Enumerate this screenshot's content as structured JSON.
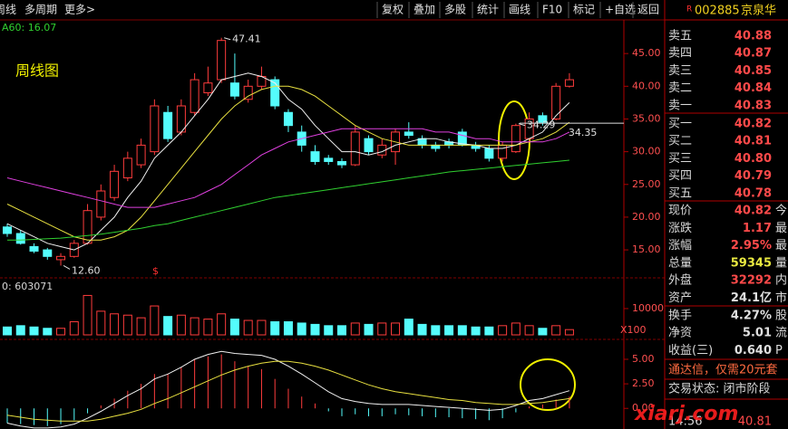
{
  "toolbar": {
    "left": [
      "周线",
      "多周期",
      "更多>"
    ],
    "buttons": [
      "复权",
      "叠加",
      "多股",
      "统计",
      "画线",
      "F10",
      "标记",
      "+自选",
      "返回"
    ]
  },
  "quote": {
    "flag": "R",
    "code": "002885",
    "name": "京泉华",
    "book": [
      [
        "卖五",
        "40.88"
      ],
      [
        "卖四",
        "40.87"
      ],
      [
        "卖三",
        "40.85"
      ],
      [
        "卖二",
        "40.84"
      ],
      [
        "卖一",
        "40.83"
      ],
      [
        "买一",
        "40.82"
      ],
      [
        "买二",
        "40.81"
      ],
      [
        "买三",
        "40.80"
      ],
      [
        "买四",
        "40.79"
      ],
      [
        "买五",
        "40.78"
      ]
    ],
    "stats": [
      {
        "label": "现价",
        "value": "40.82",
        "tail": "今",
        "color": "#ff4a4a"
      },
      {
        "label": "涨跌",
        "value": "1.17",
        "tail": "最",
        "color": "#ff4a4a"
      },
      {
        "label": "涨幅",
        "value": "2.95%",
        "tail": "最",
        "color": "#ff4a4a"
      },
      {
        "label": "总量",
        "value": "59345",
        "tail": "量",
        "color": "#e8e840"
      },
      {
        "label": "外盘",
        "value": "32292",
        "tail": "内",
        "color": "#ff4a4a"
      },
      {
        "label": "资产",
        "value": "24.1亿",
        "tail": "市",
        "color": "#e0e0e0"
      },
      {
        "label": "换手",
        "value": "4.27%",
        "tail": "股",
        "color": "#e0e0e0"
      },
      {
        "label": "净资",
        "value": "5.01",
        "tail": "流",
        "color": "#e0e0e0"
      },
      {
        "label": "收益(三)",
        "value": "0.640",
        "tail": "P",
        "color": "#e0e0e0"
      }
    ],
    "promo": "通达信，仅需20元套",
    "status": "交易状态: 闭市阶段",
    "tick": {
      "time": "14:56",
      "price": "40.81"
    }
  },
  "watermark": "xiarj.com",
  "chart_data": [
    {
      "type": "candlestick",
      "title": "周线图",
      "ma_label": "A60: 16.07",
      "mark": "$",
      "up_color": "#ff3c3c",
      "down_color": "#54fcfc",
      "open": [
        18.5,
        17.5,
        15.5,
        15,
        13.5,
        14,
        16,
        20,
        23,
        26,
        28,
        30,
        36,
        33,
        36,
        39,
        41,
        40.5,
        38,
        40,
        41,
        36,
        33,
        30,
        29,
        28.5,
        28,
        32,
        29.5,
        30,
        33,
        32,
        31,
        31.5,
        33,
        31,
        30.5,
        29,
        30,
        32,
        35.5,
        35,
        40
      ],
      "close": [
        17.5,
        16,
        14.8,
        14,
        14,
        16,
        21,
        24,
        27,
        29,
        31,
        37,
        32,
        37,
        41,
        40.5,
        47,
        38.5,
        40,
        41.5,
        37,
        34,
        31,
        28.5,
        28.5,
        28,
        33,
        30,
        31,
        33,
        32.5,
        31,
        30.5,
        31,
        31,
        30.5,
        29,
        31,
        34,
        35,
        34.5,
        40,
        41
      ],
      "high": [
        19,
        18,
        16,
        15.3,
        14.5,
        16.5,
        22,
        25,
        28,
        30,
        32,
        38,
        37,
        38,
        42,
        43,
        47.41,
        45,
        41,
        43,
        41.5,
        36.5,
        34,
        31,
        29.5,
        29,
        34,
        32.5,
        32,
        33.5,
        34.5,
        32.5,
        31.5,
        32,
        33.5,
        31.5,
        31,
        31.5,
        34.29,
        36,
        36,
        40.5,
        42
      ],
      "low": [
        17,
        15.8,
        14.5,
        13.5,
        12.6,
        13.8,
        15.8,
        19.5,
        22.5,
        25.5,
        27.5,
        29.5,
        31.5,
        32.5,
        35.5,
        38.5,
        40.5,
        38,
        37.5,
        39.5,
        36.5,
        33,
        30,
        28,
        28,
        27.5,
        27.8,
        29.5,
        29,
        28,
        32,
        30.5,
        30,
        30.5,
        30.8,
        30,
        28.5,
        28.5,
        29.8,
        31.5,
        34,
        34.8,
        39.8
      ],
      "lines": [
        {
          "color": "#f0f0f0",
          "values": [
            19,
            18,
            17,
            16,
            15.5,
            15,
            16,
            18,
            20,
            23,
            25.5,
            29,
            31,
            33,
            35.5,
            38,
            41,
            41.5,
            42,
            41.5,
            40.5,
            38,
            36.5,
            34,
            32,
            30,
            30,
            29.5,
            30,
            31,
            31.5,
            32,
            32,
            31.5,
            31.2,
            31,
            30.5,
            30.5,
            31,
            32,
            33,
            35.5,
            37.5
          ]
        },
        {
          "color": "#e8e040",
          "values": [
            22,
            21,
            20,
            19,
            18,
            17,
            16.5,
            16.5,
            17,
            18,
            20,
            22.5,
            25,
            27.5,
            30,
            32.5,
            35,
            37,
            38.5,
            39.5,
            40,
            40,
            39.5,
            38.5,
            37,
            35.5,
            34,
            33,
            32,
            31.5,
            31,
            31,
            31,
            31,
            31,
            31,
            31,
            31,
            31,
            31.5,
            32,
            33,
            34.5
          ]
        },
        {
          "color": "#e040e0",
          "values": [
            26,
            25.5,
            25,
            24.5,
            24,
            23.5,
            23,
            22.5,
            22,
            21.5,
            21.5,
            21.5,
            22,
            22.5,
            23,
            24,
            25,
            26.5,
            28,
            29.5,
            30.5,
            31.5,
            32,
            32.5,
            33,
            33.5,
            33.5,
            33.5,
            33.5,
            33.5,
            33.5,
            33.5,
            33,
            33,
            32.5,
            32,
            32,
            31.5,
            31.5,
            31.5,
            31.5,
            32,
            33
          ]
        },
        {
          "color": "#30d030",
          "values": [
            16.5,
            16.5,
            16.6,
            16.7,
            16.8,
            17,
            17.2,
            17.4,
            17.7,
            18,
            18.3,
            18.7,
            19,
            19.5,
            20,
            20.5,
            21,
            21.5,
            22,
            22.5,
            23,
            23.3,
            23.6,
            23.9,
            24.2,
            24.5,
            24.8,
            25.1,
            25.4,
            25.7,
            26,
            26.3,
            26.6,
            26.9,
            27.1,
            27.3,
            27.5,
            27.7,
            27.9,
            28.1,
            28.3,
            28.5,
            28.7
          ]
        }
      ],
      "annotations": [
        {
          "value": 47.41,
          "label": "47.41"
        },
        {
          "value": 12.6,
          "label": "12.60"
        },
        {
          "value": 34.29,
          "label": "34.29"
        }
      ],
      "level": {
        "value": 34.35,
        "label": "34.35"
      },
      "ylim": [
        11,
        50
      ],
      "yticks": [
        {
          "value": 15,
          "label": "15.00"
        },
        {
          "value": 20,
          "label": "20.00"
        },
        {
          "value": 25,
          "label": "25.00"
        },
        {
          "value": 30,
          "label": "30.00"
        },
        {
          "value": 35,
          "label": "35.00"
        },
        {
          "value": 40,
          "label": "40.00"
        },
        {
          "value": 45,
          "label": "45.00"
        }
      ]
    },
    {
      "type": "bar",
      "title": "0: 603071",
      "unit": "X100",
      "values": [
        3000,
        3500,
        3000,
        2500,
        2500,
        5000,
        15000,
        9000,
        8000,
        7500,
        6500,
        11000,
        7000,
        7500,
        6500,
        6000,
        8000,
        6000,
        5500,
        5500,
        5000,
        5000,
        4500,
        4000,
        3500,
        3500,
        4500,
        4000,
        4500,
        4500,
        6000,
        4000,
        3500,
        3500,
        3500,
        3000,
        3000,
        3500,
        4500,
        3500,
        2500,
        3500,
        2000
      ],
      "ylim": [
        0,
        21000
      ],
      "yticks": [
        10000
      ]
    },
    {
      "type": "macd",
      "hist": [
        -1.5,
        -1.6,
        -1.7,
        -1.8,
        -1.6,
        -1.2,
        -0.5,
        0.3,
        1.0,
        1.8,
        2.5,
        3.5,
        3.5,
        4.2,
        5.0,
        5.3,
        5.5,
        4.8,
        4.3,
        4.0,
        3.0,
        2.0,
        1.2,
        0.5,
        -0.3,
        -0.8,
        -0.6,
        -0.8,
        -0.8,
        -0.6,
        -0.7,
        -0.8,
        -0.9,
        -0.9,
        -1.0,
        -1.1,
        -1.2,
        -1.0,
        -0.4,
        0.2,
        0.4,
        0.9,
        1.2
      ],
      "lines": [
        {
          "color": "#f0f0f0",
          "values": [
            -1.5,
            -1.8,
            -2.0,
            -2.0,
            -1.9,
            -1.6,
            -1.0,
            -0.3,
            0.5,
            1.3,
            2.0,
            3.0,
            3.5,
            4.2,
            5.0,
            5.5,
            5.8,
            5.6,
            5.5,
            5.4,
            5.0,
            4.3,
            3.5,
            2.6,
            1.7,
            1.0,
            0.7,
            0.5,
            0.4,
            0.4,
            0.4,
            0.3,
            0.2,
            0.1,
            0,
            -0.1,
            -0.2,
            -0.1,
            0.3,
            0.8,
            1.0,
            1.4,
            1.8
          ]
        },
        {
          "color": "#e8e040",
          "values": [
            -0.7,
            -0.9,
            -1.1,
            -1.2,
            -1.3,
            -1.3,
            -1.3,
            -1.1,
            -0.8,
            -0.5,
            -0.1,
            0.5,
            1.0,
            1.6,
            2.2,
            2.8,
            3.4,
            3.9,
            4.3,
            4.6,
            4.8,
            4.8,
            4.6,
            4.3,
            3.9,
            3.4,
            2.9,
            2.4,
            2.0,
            1.7,
            1.5,
            1.3,
            1.1,
            0.9,
            0.8,
            0.6,
            0.5,
            0.4,
            0.4,
            0.5,
            0.6,
            0.8,
            1.0
          ]
        }
      ],
      "ylim": [
        -2.1,
        6.75
      ],
      "yticks": [
        {
          "value": 0,
          "label": "0.00"
        },
        {
          "value": 2.5,
          "label": "2.50"
        },
        {
          "value": 5,
          "label": "5.00"
        }
      ]
    }
  ]
}
